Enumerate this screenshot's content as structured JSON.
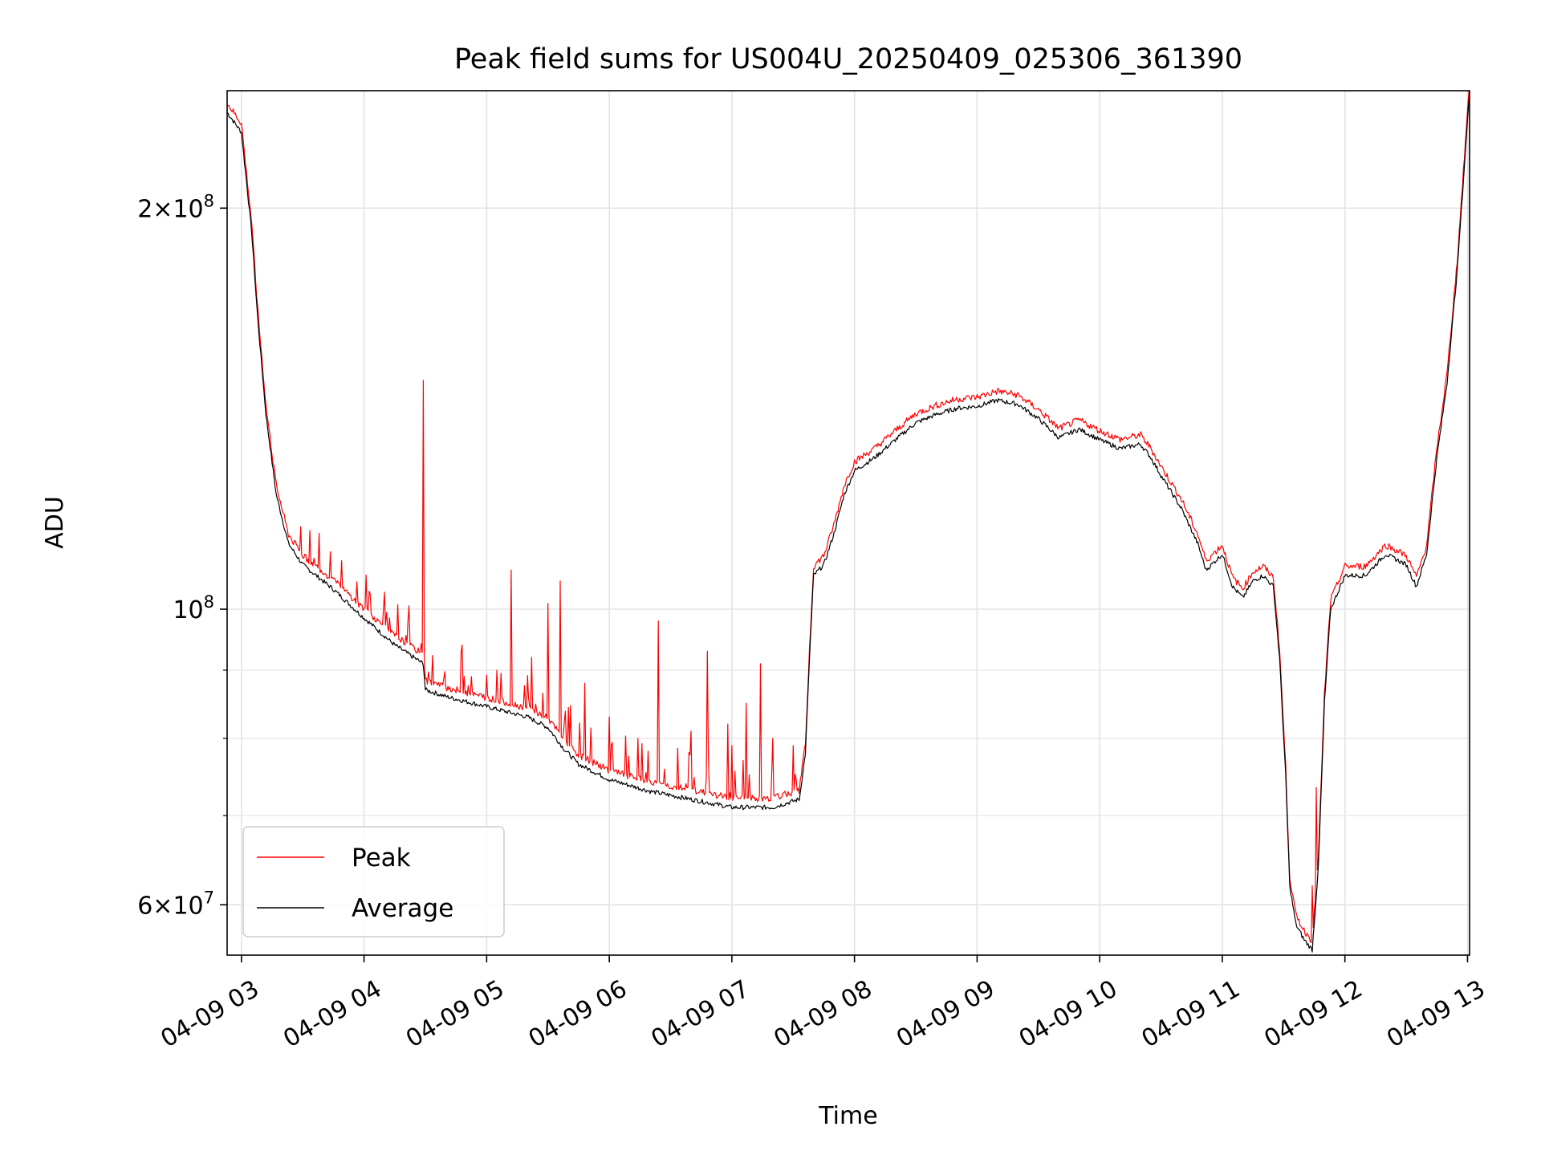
{
  "chart_data": {
    "type": "line",
    "title": "Peak field sums for US004U_20250409_025306_361390",
    "xlabel": "Time",
    "ylabel": "ADU",
    "x_axis": {
      "kind": "datetime",
      "range": [
        "2025-04-09 02:53",
        "2025-04-09 13:01"
      ],
      "ticks": [
        "2025-04-09 03:00",
        "2025-04-09 04:00",
        "2025-04-09 05:00",
        "2025-04-09 06:00",
        "2025-04-09 07:00",
        "2025-04-09 08:00",
        "2025-04-09 09:00",
        "2025-04-09 10:00",
        "2025-04-09 11:00",
        "2025-04-09 12:00",
        "2025-04-09 13:00"
      ],
      "tick_labels": [
        "04-09 03",
        "04-09 04",
        "04-09 05",
        "04-09 06",
        "04-09 07",
        "04-09 08",
        "04-09 09",
        "04-09 10",
        "04-09 11",
        "04-09 12",
        "04-09 13"
      ]
    },
    "y_axis": {
      "scale": "log",
      "range": [
        55000000,
        245000000
      ],
      "labeled_ticks": [
        {
          "value": 60000000,
          "mantissa": "6",
          "base": "10",
          "exp": "7"
        },
        {
          "value": 100000000,
          "mantissa": "",
          "base": "10",
          "exp": "8"
        },
        {
          "value": 200000000,
          "mantissa": "2",
          "base": "10",
          "exp": "8"
        }
      ],
      "minor_ticks": [
        70000000,
        80000000,
        90000000
      ],
      "times_sign": "×"
    },
    "grid": true,
    "legend": {
      "position": "lower-left"
    },
    "series": [
      {
        "name": "Average",
        "color": "#000000",
        "points": [
          [
            "2025-04-09 02:53",
            236000000
          ],
          [
            "2025-04-09 03:00",
            228000000
          ],
          [
            "2025-04-09 03:05",
            192000000
          ],
          [
            "2025-04-09 03:08",
            165000000
          ],
          [
            "2025-04-09 03:12",
            140000000
          ],
          [
            "2025-04-09 03:17",
            122000000
          ],
          [
            "2025-04-09 03:23",
            112000000
          ],
          [
            "2025-04-09 03:30",
            108000000
          ],
          [
            "2025-04-09 03:45",
            103500000
          ],
          [
            "2025-04-09 04:00",
            98500000
          ],
          [
            "2025-04-09 04:15",
            94000000
          ],
          [
            "2025-04-09 04:29",
            91000000
          ],
          [
            "2025-04-09 04:30",
            87000000
          ],
          [
            "2025-04-09 04:40",
            86000000
          ],
          [
            "2025-04-09 05:00",
            84500000
          ],
          [
            "2025-04-09 05:20",
            83000000
          ],
          [
            "2025-04-09 05:30",
            81500000
          ],
          [
            "2025-04-09 05:38",
            78500000
          ],
          [
            "2025-04-09 05:45",
            76500000
          ],
          [
            "2025-04-09 06:00",
            74500000
          ],
          [
            "2025-04-09 06:20",
            73000000
          ],
          [
            "2025-04-09 06:40",
            72000000
          ],
          [
            "2025-04-09 07:00",
            71000000
          ],
          [
            "2025-04-09 07:20",
            71000000
          ],
          [
            "2025-04-09 07:33",
            72000000
          ],
          [
            "2025-04-09 07:36",
            78000000
          ],
          [
            "2025-04-09 07:38",
            92000000
          ],
          [
            "2025-04-09 07:40",
            106000000
          ],
          [
            "2025-04-09 07:45",
            108000000
          ],
          [
            "2025-04-09 07:50",
            114000000
          ],
          [
            "2025-04-09 07:55",
            122000000
          ],
          [
            "2025-04-09 08:00",
            127000000
          ],
          [
            "2025-04-09 08:10",
            130000000
          ],
          [
            "2025-04-09 08:20",
            134000000
          ],
          [
            "2025-04-09 08:30",
            138000000
          ],
          [
            "2025-04-09 08:40",
            140000000
          ],
          [
            "2025-04-09 08:50",
            141500000
          ],
          [
            "2025-04-09 09:00",
            142000000
          ],
          [
            "2025-04-09 09:10",
            143500000
          ],
          [
            "2025-04-09 09:20",
            142500000
          ],
          [
            "2025-04-09 09:30",
            139000000
          ],
          [
            "2025-04-09 09:40",
            134500000
          ],
          [
            "2025-04-09 09:50",
            136500000
          ],
          [
            "2025-04-09 10:00",
            134000000
          ],
          [
            "2025-04-09 10:10",
            132000000
          ],
          [
            "2025-04-09 10:20",
            133000000
          ],
          [
            "2025-04-09 10:25",
            130000000
          ],
          [
            "2025-04-09 10:30",
            126000000
          ],
          [
            "2025-04-09 10:40",
            119000000
          ],
          [
            "2025-04-09 10:48",
            112000000
          ],
          [
            "2025-04-09 10:52",
            107000000
          ],
          [
            "2025-04-09 11:00",
            110000000
          ],
          [
            "2025-04-09 11:05",
            104000000
          ],
          [
            "2025-04-09 11:10",
            102000000
          ],
          [
            "2025-04-09 11:15",
            105000000
          ],
          [
            "2025-04-09 11:20",
            106000000
          ],
          [
            "2025-04-09 11:25",
            104000000
          ],
          [
            "2025-04-09 11:28",
            92000000
          ],
          [
            "2025-04-09 11:31",
            75000000
          ],
          [
            "2025-04-09 11:33",
            62000000
          ],
          [
            "2025-04-09 11:36",
            58000000
          ],
          [
            "2025-04-09 11:40",
            56500000
          ],
          [
            "2025-04-09 11:44",
            55500000
          ],
          [
            "2025-04-09 11:47",
            64000000
          ],
          [
            "2025-04-09 11:50",
            85000000
          ],
          [
            "2025-04-09 11:53",
            100000000
          ],
          [
            "2025-04-09 12:00",
            106000000
          ],
          [
            "2025-04-09 12:10",
            106000000
          ],
          [
            "2025-04-09 12:20",
            110000000
          ],
          [
            "2025-04-09 12:30",
            108000000
          ],
          [
            "2025-04-09 12:35",
            104000000
          ],
          [
            "2025-04-09 12:40",
            110000000
          ],
          [
            "2025-04-09 12:45",
            130000000
          ],
          [
            "2025-04-09 12:50",
            148000000
          ],
          [
            "2025-04-09 12:55",
            180000000
          ],
          [
            "2025-04-09 13:01",
            245000000
          ]
        ]
      },
      {
        "name": "Peak",
        "color": "#ff0000",
        "baseline": "Average series raised by about 1%, with narrow upward spikes",
        "spikes": [
          [
            "2025-04-09 03:38",
            114000000
          ],
          [
            "2025-04-09 04:10",
            103000000
          ],
          [
            "2025-04-09 04:29",
            148500000
          ],
          [
            "2025-04-09 04:48",
            94000000
          ],
          [
            "2025-04-09 05:05",
            90000000
          ],
          [
            "2025-04-09 05:12",
            107000000
          ],
          [
            "2025-04-09 05:22",
            92000000
          ],
          [
            "2025-04-09 05:30",
            101000000
          ],
          [
            "2025-04-09 05:36",
            105000000
          ],
          [
            "2025-04-09 05:48",
            88000000
          ],
          [
            "2025-04-09 06:00",
            83000000
          ],
          [
            "2025-04-09 06:14",
            80000000
          ],
          [
            "2025-04-09 06:24",
            98000000
          ],
          [
            "2025-04-09 06:40",
            81000000
          ],
          [
            "2025-04-09 06:48",
            93000000
          ],
          [
            "2025-04-09 06:58",
            82000000
          ],
          [
            "2025-04-09 07:00",
            79000000
          ],
          [
            "2025-04-09 07:07",
            85000000
          ],
          [
            "2025-04-09 07:14",
            91000000
          ],
          [
            "2025-04-09 07:20",
            80000000
          ],
          [
            "2025-04-09 07:30",
            79000000
          ],
          [
            "2025-04-09 11:46",
            73500000
          ],
          [
            "2025-04-09 11:44",
            62000000
          ],
          [
            "2025-04-09 11:49",
            63000000
          ]
        ]
      }
    ]
  }
}
